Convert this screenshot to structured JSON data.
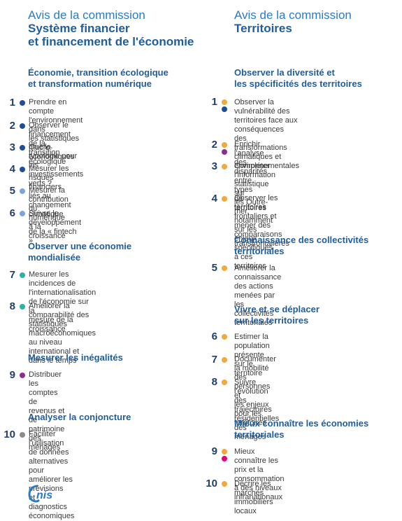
{
  "left": {
    "avis": "Avis de la commission",
    "title_line1": "Système financier",
    "title_line2": "et financement de l'économie",
    "sections": [
      {
        "title_lines": [
          "Économie, transition écologique",
          "et transformation numérique"
        ],
        "items": [
          {
            "num": "1",
            "color": "#1f4e96",
            "lines": [
              "Prendre en compte l'environnement dans",
              "les statistiques macro-économiques"
            ]
          },
          {
            "num": "2",
            "color": "#1f4e96",
            "lines": [
              "Observer le financement de la transition",
              "écologique"
            ]
          },
          {
            "num": "3",
            "color": "#1f4e96",
            "lines": [
              "Quelle typologie pour les investissements",
              "verts ?"
            ]
          },
          {
            "num": "4",
            "color": "#1f4e96",
            "lines": [
              "Mesurer les risques financiers liés au",
              "changement climatique"
            ]
          },
          {
            "num": "5",
            "color": "#7aa6dc",
            "lines": [
              "Mesurer la contribution du numérique à la",
              "croissance"
            ]
          },
          {
            "num": "6",
            "color": "#7aa6dc",
            "lines": [
              "Suivre le développement de la « fintech »"
            ]
          }
        ]
      },
      {
        "title_lines": [
          "Observer une économie",
          "mondialisée"
        ],
        "items": [
          {
            "num": "7",
            "color": "#2ab3a3",
            "lines": [
              "Mesurer les incidences de",
              "l'internationalisation de l'économie sur la",
              "mesure de la croissance"
            ]
          },
          {
            "num": "8",
            "color": "#2ab3a3",
            "lines": [
              "Améliorer la comparabilité des",
              "statistiques macroéconomiques au niveau",
              "international et dans le temps"
            ]
          }
        ]
      },
      {
        "title_lines": [
          "Mesurer les inégalités"
        ],
        "items": [
          {
            "num": "9",
            "color": "#8a2f8c",
            "lines": [
              "Distribuer les comptes de revenus et de",
              "patrimoine des ménages"
            ]
          }
        ]
      },
      {
        "title_lines": [
          "Analyser la conjoncture"
        ],
        "items": [
          {
            "num": "10",
            "color": "#8c8c8c",
            "lines": [
              "Faciliter l'utilisation de données",
              "alternatives pour améliorer les prévisions",
              "et diagnostics économiques"
            ]
          }
        ]
      }
    ]
  },
  "right": {
    "avis": "Avis de la commission",
    "title_line1": "Territoires",
    "sections": [
      {
        "title_lines": [
          "Observer la diversité et",
          "les spécificités des territoires"
        ],
        "items": [
          {
            "num": "1",
            "color": "#f2a93b",
            "color2": "#1f4e96",
            "lines": [
              "Observer la vulnérabilité des",
              "territoires face aux conséquences",
              "des transformations climatiques et",
              "environnementales"
            ]
          },
          {
            "num": "2",
            "color": "#f2a93b",
            "color2": "#8a2f8c",
            "lines": [
              "Enrichir l'analyse des disparités entre types",
              "de territoires"
            ]
          },
          {
            "num": "3",
            "color": "#f2a93b",
            "lines": [
              "Compléter l'information statistique sur",
              "les Outre-mer, notamment sur les enjeux",
              "spécifiques à ces territoires"
            ]
          },
          {
            "num": "4",
            "color": "#f2a93b",
            "lines": [
              "Observer les territoires frontaliers et",
              "mener des comparaisons transfrontalières"
            ]
          }
        ]
      },
      {
        "title_lines": [
          "Connaissance des collectivités",
          "territoriales"
        ],
        "items": [
          {
            "num": "5",
            "color": "#f2a93b",
            "lines": [
              "Améliorer la connaissance des actions",
              "menées par les collectivités territoriales"
            ]
          }
        ]
      },
      {
        "title_lines": [
          "Vivre et se déplacer",
          "sur les territoires"
        ],
        "items": [
          {
            "num": "6",
            "color": "#f2a93b",
            "lines": [
              "Estimer la population présente sur le",
              "territoire"
            ]
          },
          {
            "num": "7",
            "color": "#f2a93b",
            "lines": [
              "Documenter la mobilité des personnes et",
              "les enjeux pour les territoires"
            ]
          },
          {
            "num": "8",
            "color": "#f2a93b",
            "lines": [
              "Suivre l'évolution des trajectoires",
              "résidentielles des ménages"
            ]
          }
        ]
      },
      {
        "title_lines": [
          "Mieux connaître les économies",
          "territoriales"
        ],
        "items": [
          {
            "num": "9",
            "color": "#f2a93b",
            "color2": "#e6007e",
            "lines": [
              "Mieux connaître les prix et la",
              "consommation à des niveaux",
              "infranationaux"
            ]
          },
          {
            "num": "10",
            "color": "#f2a93b",
            "lines": [
              "Décrire les marchés immobiliers locaux"
            ]
          }
        ]
      }
    ]
  },
  "logo": {
    "text": "cnis",
    "color": "#2b7ac7"
  }
}
